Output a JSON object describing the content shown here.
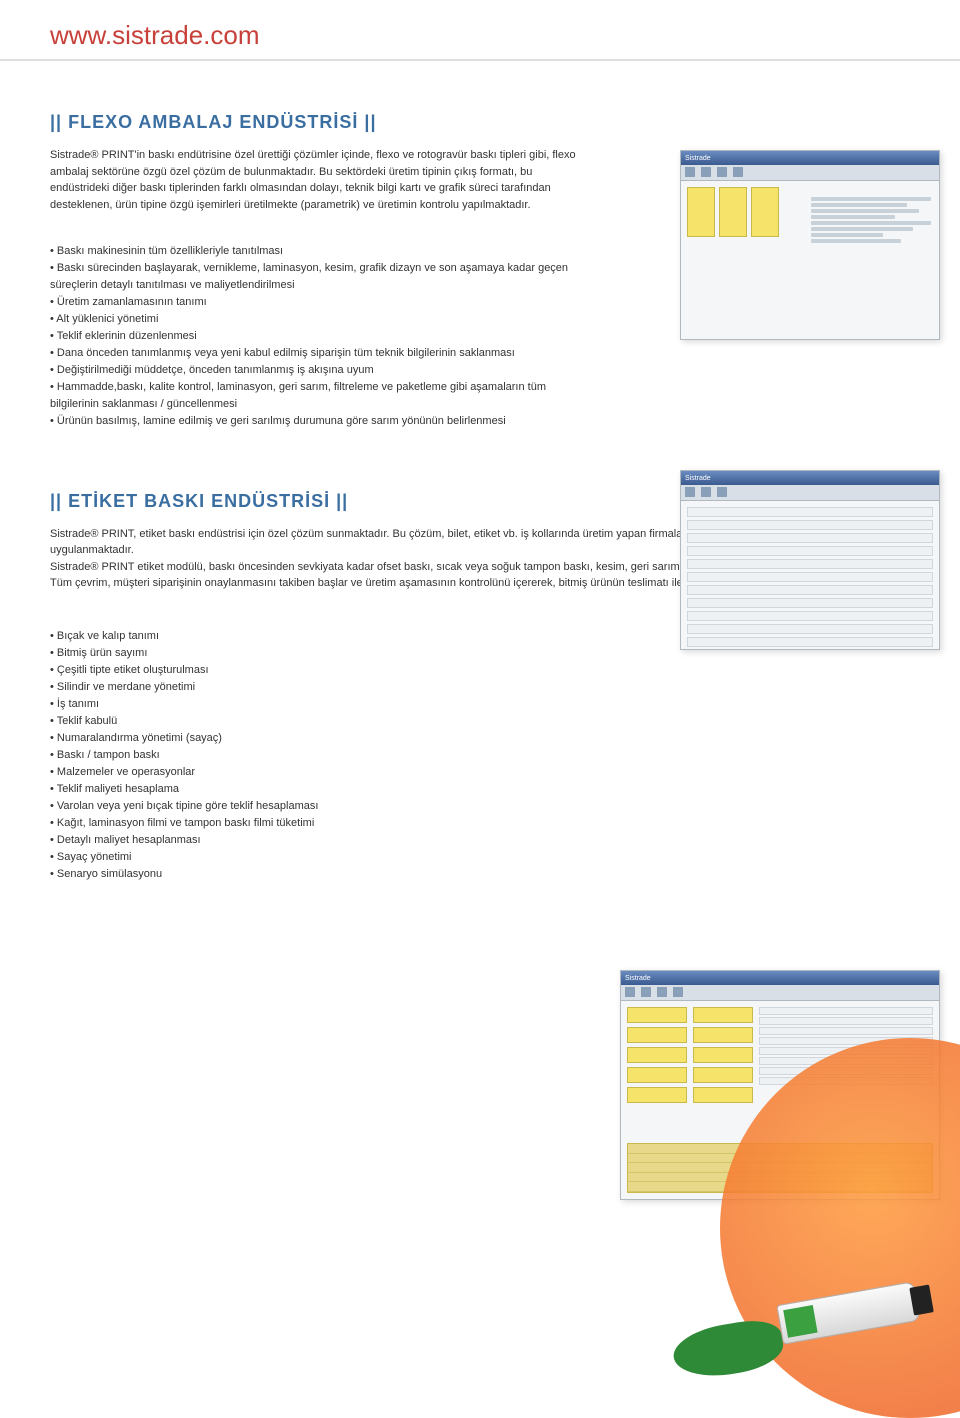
{
  "header": {
    "url": "www.sistrade.com"
  },
  "section1": {
    "title": "|| FLEXO AMBALAJ ENDÜSTRİSİ ||",
    "intro": "Sistrade® PRINT'in baskı endütrisine özel ürettiği çözümler içinde, flexo ve rotogravür baskı tipleri gibi, flexo ambalaj sektörüne özgü özel çözüm de bulunmaktadır. Bu sektördeki üretim tipinin çıkış formatı, bu endüstrideki diğer baskı tiplerinden farklı olmasından dolayı, teknik bilgi kartı ve grafik süreci tarafından desteklenen, ürün tipine özgü işemirleri üretilmekte (parametrik) ve üretimin kontrolu yapılmaktadır.",
    "bullets": [
      "• Baskı makinesinin tüm özellikleriyle tanıtılması",
      "• Baskı sürecinden başlayarak, vernikleme, laminasyon, kesim, grafik dizayn ve son aşamaya kadar geçen süreçlerin detaylı tanıtılması ve maliyetlendirilmesi",
      "• Üretim zamanlamasının tanımı",
      "• Alt yüklenici yönetimi",
      "• Teklif eklerinin düzenlenmesi",
      "• Dana önceden tanımlanmış veya yeni kabul edilmiş siparişin tüm teknik bilgilerinin saklanması",
      "• Değiştirilmediği müddetçe, önceden tanımlanmış iş akışına uyum",
      "• Hammadde,baskı, kalite kontrol, laminasyon, geri sarım, filtreleme ve paketleme gibi aşamaların tüm bilgilerinin saklanması / güncellenmesi",
      "• Ürünün basılmış, lamine edilmiş ve geri sarılmış durumuna göre sarım yönünün belirlenmesi"
    ]
  },
  "section2": {
    "title": "|| ETİKET BASKI ENDÜSTRİSİ ||",
    "intro": "Sistrade® PRINT, etiket baskı endüstrisi için özel çözüm sunmaktadır. Bu çözüm, bilet, etiket vb. iş kollarında üretim yapan firmaların ihtiyaçlarını gidermek üzere uygulanmaktadır.\nSistrade® PRINT etiket modülü, baskı öncesinden sevkiyata kadar ofset baskı, sıcak veya soğuk tampon baskı, kesim, geri sarım gibi aşamaların kontrolünü sağlamaktadır. Tüm çevrim, müşteri siparişinin onaylanmasını takiben başlar ve üretim aşamasının kontrolünü içererek, bitmiş ürünün teslimatı ile son bulur.",
    "bullets": [
      "• Bıçak ve kalıp tanımı",
      "• Bitmiş ürün sayımı",
      "• Çeşitli tipte etiket oluşturulması",
      "• Silindir ve merdane yönetimi",
      "• İş tanımı",
      "• Teklif kabulü",
      "• Numaralandırma yönetimi (sayaç)",
      "• Baskı / tampon baskı",
      "• Malzemeler ve operasyonlar",
      "• Teklif maliyeti hesaplama",
      "• Varolan veya yeni bıçak tipine göre teklif hesaplaması",
      "• Kağıt, laminasyon filmi ve tampon baskı filmi tüketimi",
      "• Detaylı maliyet hesaplanması",
      "• Sayaç yönetimi",
      "• Senaryo simülasyonu"
    ]
  },
  "colors": {
    "title_blue": "#3a6ea1",
    "url_red": "#c7413a",
    "text": "#333333",
    "yellow": "#f5e36a",
    "orange": "#f06a2a",
    "green": "#2f8a38"
  }
}
